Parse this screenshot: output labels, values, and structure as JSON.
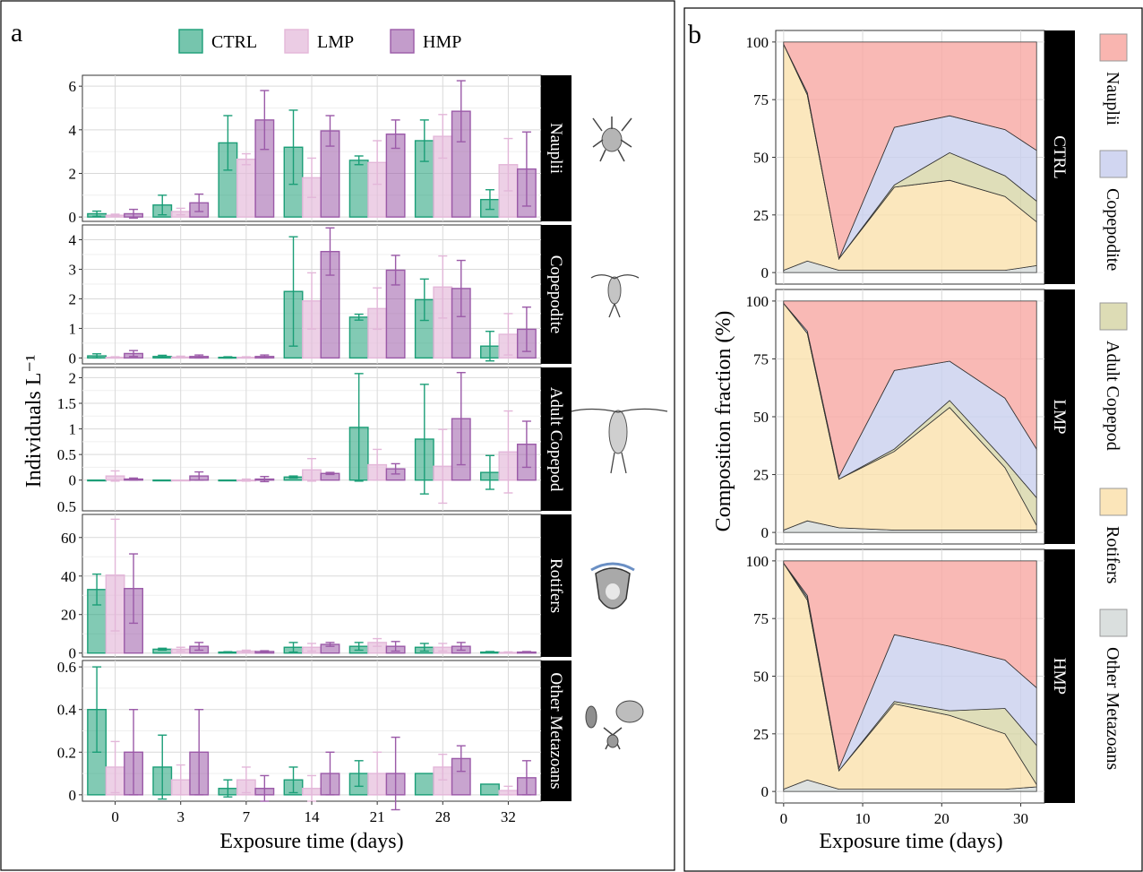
{
  "figure": {
    "panel_a_label": "a",
    "panel_b_label": "b"
  },
  "colors": {
    "CTRL": "#1b9e77",
    "LMP": "#e3b7d9",
    "HMP": "#9b5aa8",
    "Nauplii": "#f8a8a2",
    "Copepodite": "#c9cfee",
    "Adult Copepod": "#d7d6a8",
    "Rotifers": "#fae1ad",
    "Other Metazoans": "#d4d9d8"
  },
  "chart_data": [
    {
      "type": "bar",
      "panel": "a",
      "xlabel": "Exposure time (days)",
      "ylabel": "Individuals L⁻¹",
      "categories": [
        "0",
        "3",
        "7",
        "14",
        "21",
        "28",
        "32"
      ],
      "legend": [
        "CTRL",
        "LMP",
        "HMP"
      ],
      "legend_position": "top",
      "facets": [
        {
          "name": "Nauplii",
          "ylim": [
            -0.2,
            6.5
          ],
          "yticks": [
            0,
            2,
            4,
            6
          ],
          "series": [
            {
              "name": "CTRL",
              "values": [
                0.15,
                0.55,
                3.4,
                3.2,
                2.6,
                3.5,
                0.8
              ],
              "errors": [
                0.12,
                0.45,
                1.25,
                1.7,
                0.2,
                0.95,
                0.45
              ]
            },
            {
              "name": "LMP",
              "values": [
                0.08,
                0.25,
                2.65,
                1.8,
                2.5,
                3.7,
                2.4
              ],
              "errors": [
                0.05,
                0.15,
                0.25,
                0.9,
                1.0,
                1.0,
                1.2
              ]
            },
            {
              "name": "HMP",
              "values": [
                0.15,
                0.65,
                4.45,
                3.95,
                3.8,
                4.85,
                2.2
              ],
              "errors": [
                0.2,
                0.4,
                1.35,
                0.7,
                0.65,
                1.4,
                1.7
              ]
            }
          ]
        },
        {
          "name": "Copepodite",
          "ylim": [
            -0.2,
            4.5
          ],
          "yticks": [
            0,
            1,
            2,
            3,
            4
          ],
          "series": [
            {
              "name": "CTRL",
              "values": [
                0.07,
                0.05,
                0.02,
                2.25,
                1.38,
                1.97,
                0.4
              ],
              "errors": [
                0.07,
                0.04,
                0.02,
                1.85,
                0.1,
                0.7,
                0.5
              ]
            },
            {
              "name": "LMP",
              "values": [
                0.02,
                0.03,
                0.02,
                1.93,
                1.67,
                2.4,
                0.8
              ],
              "errors": [
                0.02,
                0.03,
                0.02,
                0.95,
                0.7,
                1.05,
                0.7
              ]
            },
            {
              "name": "HMP",
              "values": [
                0.15,
                0.05,
                0.05,
                3.6,
                2.97,
                2.35,
                0.97
              ],
              "errors": [
                0.1,
                0.05,
                0.05,
                0.8,
                0.5,
                0.95,
                0.75
              ]
            }
          ]
        },
        {
          "name": "Adult Copepod",
          "ylim": [
            -0.6,
            2.2
          ],
          "yticks": [
            0,
            0.5,
            1,
            1.5,
            2
          ],
          "yticklabels": [
            "0",
            "0.5",
            "1",
            "1.5",
            "2"
          ],
          "extra_bottom_label": "0.5",
          "series": [
            {
              "name": "CTRL",
              "values": [
                0.0,
                0.0,
                0.0,
                0.06,
                1.03,
                0.8,
                0.15
              ],
              "errors": [
                0.0,
                0.0,
                0.0,
                0.02,
                1.05,
                1.07,
                0.33
              ]
            },
            {
              "name": "LMP",
              "values": [
                0.08,
                0.0,
                0.0,
                0.2,
                0.3,
                0.27,
                0.55
              ],
              "errors": [
                0.1,
                0.0,
                0.02,
                0.22,
                0.3,
                0.72,
                0.8
              ]
            },
            {
              "name": "HMP",
              "values": [
                0.02,
                0.08,
                0.02,
                0.13,
                0.22,
                1.2,
                0.7
              ],
              "errors": [
                0.02,
                0.08,
                0.05,
                0.02,
                0.1,
                0.9,
                0.45
              ]
            }
          ]
        },
        {
          "name": "Rotifers",
          "ylim": [
            -2,
            72
          ],
          "yticks": [
            0,
            20,
            40,
            60
          ],
          "series": [
            {
              "name": "CTRL",
              "values": [
                33,
                2,
                0.5,
                3,
                3.5,
                3,
                0.5
              ],
              "errors": [
                8,
                0.5,
                0.2,
                2.5,
                2,
                2,
                0.3
              ]
            },
            {
              "name": "LMP",
              "values": [
                40.5,
                2,
                1,
                3,
                5.5,
                3,
                0.3
              ],
              "errors": [
                29,
                1,
                0.5,
                2,
                2,
                2,
                0.3
              ]
            },
            {
              "name": "HMP",
              "values": [
                33.5,
                3.5,
                0.8,
                4.5,
                3.5,
                3.5,
                0.5
              ],
              "errors": [
                18,
                2,
                0.4,
                1,
                2.5,
                2,
                0.3
              ]
            }
          ]
        },
        {
          "name": "Other Metazoans",
          "ylim": [
            -0.03,
            0.63
          ],
          "yticks": [
            0,
            0.2,
            0.4,
            0.6
          ],
          "yticklabels": [
            "0",
            "0.2",
            "0.4",
            "0.6"
          ],
          "series": [
            {
              "name": "CTRL",
              "values": [
                0.4,
                0.13,
                0.03,
                0.07,
                0.1,
                0.1,
                0.05
              ],
              "errors": [
                0.2,
                0.15,
                0.04,
                0.06,
                0.06,
                0.0,
                0.0
              ]
            },
            {
              "name": "LMP",
              "values": [
                0.13,
                0.07,
                0.07,
                0.03,
                0.1,
                0.13,
                0.02
              ],
              "errors": [
                0.12,
                0.07,
                0.06,
                0.06,
                0.1,
                0.06,
                0.02
              ]
            },
            {
              "name": "HMP",
              "values": [
                0.2,
                0.2,
                0.03,
                0.1,
                0.1,
                0.17,
                0.08
              ],
              "errors": [
                0.2,
                0.2,
                0.06,
                0.1,
                0.17,
                0.06,
                0.08
              ]
            }
          ]
        }
      ]
    },
    {
      "type": "area",
      "panel": "b",
      "stacked": true,
      "xlabel": "Exposure time (days)",
      "ylabel": "Composition fraction (%)",
      "xlim": [
        -1,
        33
      ],
      "xticks": [
        0,
        10,
        20,
        30
      ],
      "ylim": [
        -5,
        105
      ],
      "yticks": [
        0,
        25,
        50,
        75,
        100
      ],
      "legend": [
        "Nauplii",
        "Copepodite",
        "Adult Copepod",
        "Rotifers",
        "Other Metazoans"
      ],
      "legend_position": "right",
      "x": [
        0,
        3,
        7,
        14,
        21,
        28,
        32
      ],
      "facets": [
        {
          "name": "CTRL",
          "series": [
            {
              "name": "Other Metazoans",
              "values": [
                1,
                5,
                1,
                1,
                1,
                1,
                3
              ]
            },
            {
              "name": "Rotifers",
              "values": [
                98,
                72,
                5,
                36,
                39,
                32,
                19
              ]
            },
            {
              "name": "Adult Copepod",
              "values": [
                0,
                0,
                0,
                1,
                12,
                9,
                9
              ]
            },
            {
              "name": "Copepodite",
              "values": [
                0,
                1,
                0,
                25,
                16,
                20,
                22
              ]
            },
            {
              "name": "Nauplii",
              "values": [
                1,
                22,
                94,
                37,
                32,
                38,
                47
              ]
            }
          ]
        },
        {
          "name": "LMP",
          "series": [
            {
              "name": "Other Metazoans",
              "values": [
                1,
                5,
                2,
                1,
                1,
                1,
                1
              ]
            },
            {
              "name": "Rotifers",
              "values": [
                98,
                81,
                21,
                34,
                53,
                27,
                2
              ]
            },
            {
              "name": "Adult Copepod",
              "values": [
                0,
                0,
                0,
                1,
                3,
                3,
                12
              ]
            },
            {
              "name": "Copepodite",
              "values": [
                0,
                1,
                1,
                34,
                17,
                27,
                21
              ]
            },
            {
              "name": "Nauplii",
              "values": [
                1,
                13,
                76,
                30,
                26,
                42,
                64
              ]
            }
          ]
        },
        {
          "name": "HMP",
          "series": [
            {
              "name": "Other Metazoans",
              "values": [
                1,
                5,
                1,
                1,
                1,
                1,
                2
              ]
            },
            {
              "name": "Rotifers",
              "values": [
                98,
                78,
                8,
                37,
                32,
                24,
                1
              ]
            },
            {
              "name": "Adult Copepod",
              "values": [
                0,
                1,
                0,
                1,
                2,
                11,
                17
              ]
            },
            {
              "name": "Copepodite",
              "values": [
                0,
                1,
                1,
                29,
                28,
                21,
                25
              ]
            },
            {
              "name": "Nauplii",
              "values": [
                1,
                15,
                90,
                32,
                37,
                43,
                55
              ]
            }
          ]
        }
      ]
    }
  ]
}
